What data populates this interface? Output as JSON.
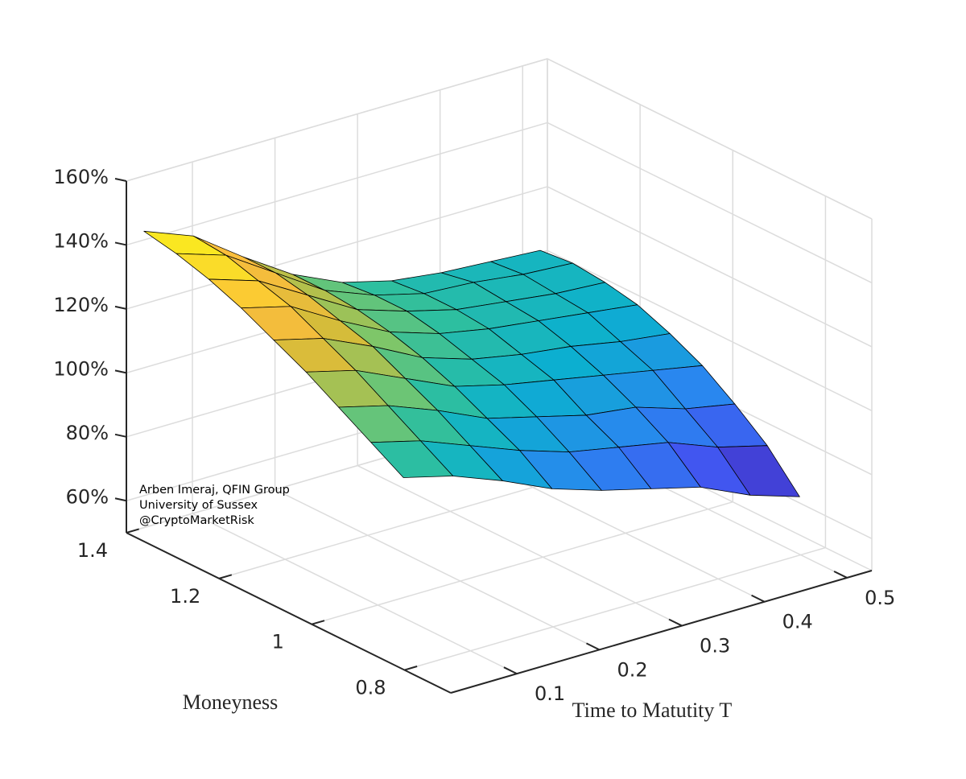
{
  "chart_data": {
    "type": "surface",
    "xlabel": "Moneyness",
    "ylabel": "Time to Matutity T",
    "annotation": [
      "Arben Imeraj, QFIN Group",
      "University of Sussex",
      "@CryptoMarketRisk"
    ],
    "colormap": "parula",
    "grid": true,
    "x": [
      0.82,
      0.89,
      0.96,
      1.03,
      1.1,
      1.17,
      1.24,
      1.31,
      1.38
    ],
    "y": [
      0.03,
      0.09,
      0.15,
      0.21,
      0.27,
      0.33,
      0.39,
      0.45,
      0.51
    ],
    "z": [
      [
        108,
        104,
        98,
        91,
        86,
        82,
        78,
        71,
        66
      ],
      [
        114,
        110,
        104,
        98,
        93,
        90,
        87,
        81,
        77
      ],
      [
        120,
        116,
        110,
        103,
        99,
        95,
        93,
        88,
        85
      ],
      [
        126,
        122,
        115,
        108,
        104,
        101,
        98,
        95,
        92
      ],
      [
        131,
        127,
        120,
        112,
        107,
        104,
        102,
        99,
        97
      ],
      [
        136,
        132,
        123,
        115,
        110,
        107,
        105,
        103,
        101
      ],
      [
        140,
        135,
        126,
        117,
        112,
        108,
        106,
        104,
        103
      ],
      [
        143,
        138,
        128,
        118,
        112,
        108,
        107,
        105,
        104
      ],
      [
        145,
        139,
        128,
        118,
        111,
        107,
        105,
        104,
        103
      ]
    ],
    "xlim": [
      0.7,
      1.4
    ],
    "ylim": [
      0.02,
      0.53
    ],
    "zlim": [
      50,
      160
    ],
    "xticks": [
      0.8,
      1,
      1.2,
      1.4
    ],
    "yticks": [
      0.1,
      0.2,
      0.3,
      0.4,
      0.5
    ],
    "zticks": [
      {
        "value": 60,
        "label": "60%"
      },
      {
        "value": 80,
        "label": "80%"
      },
      {
        "value": 100,
        "label": "100%"
      },
      {
        "value": 120,
        "label": "120%"
      },
      {
        "value": 140,
        "label": "140%"
      },
      {
        "value": 160,
        "label": "160%"
      }
    ]
  }
}
